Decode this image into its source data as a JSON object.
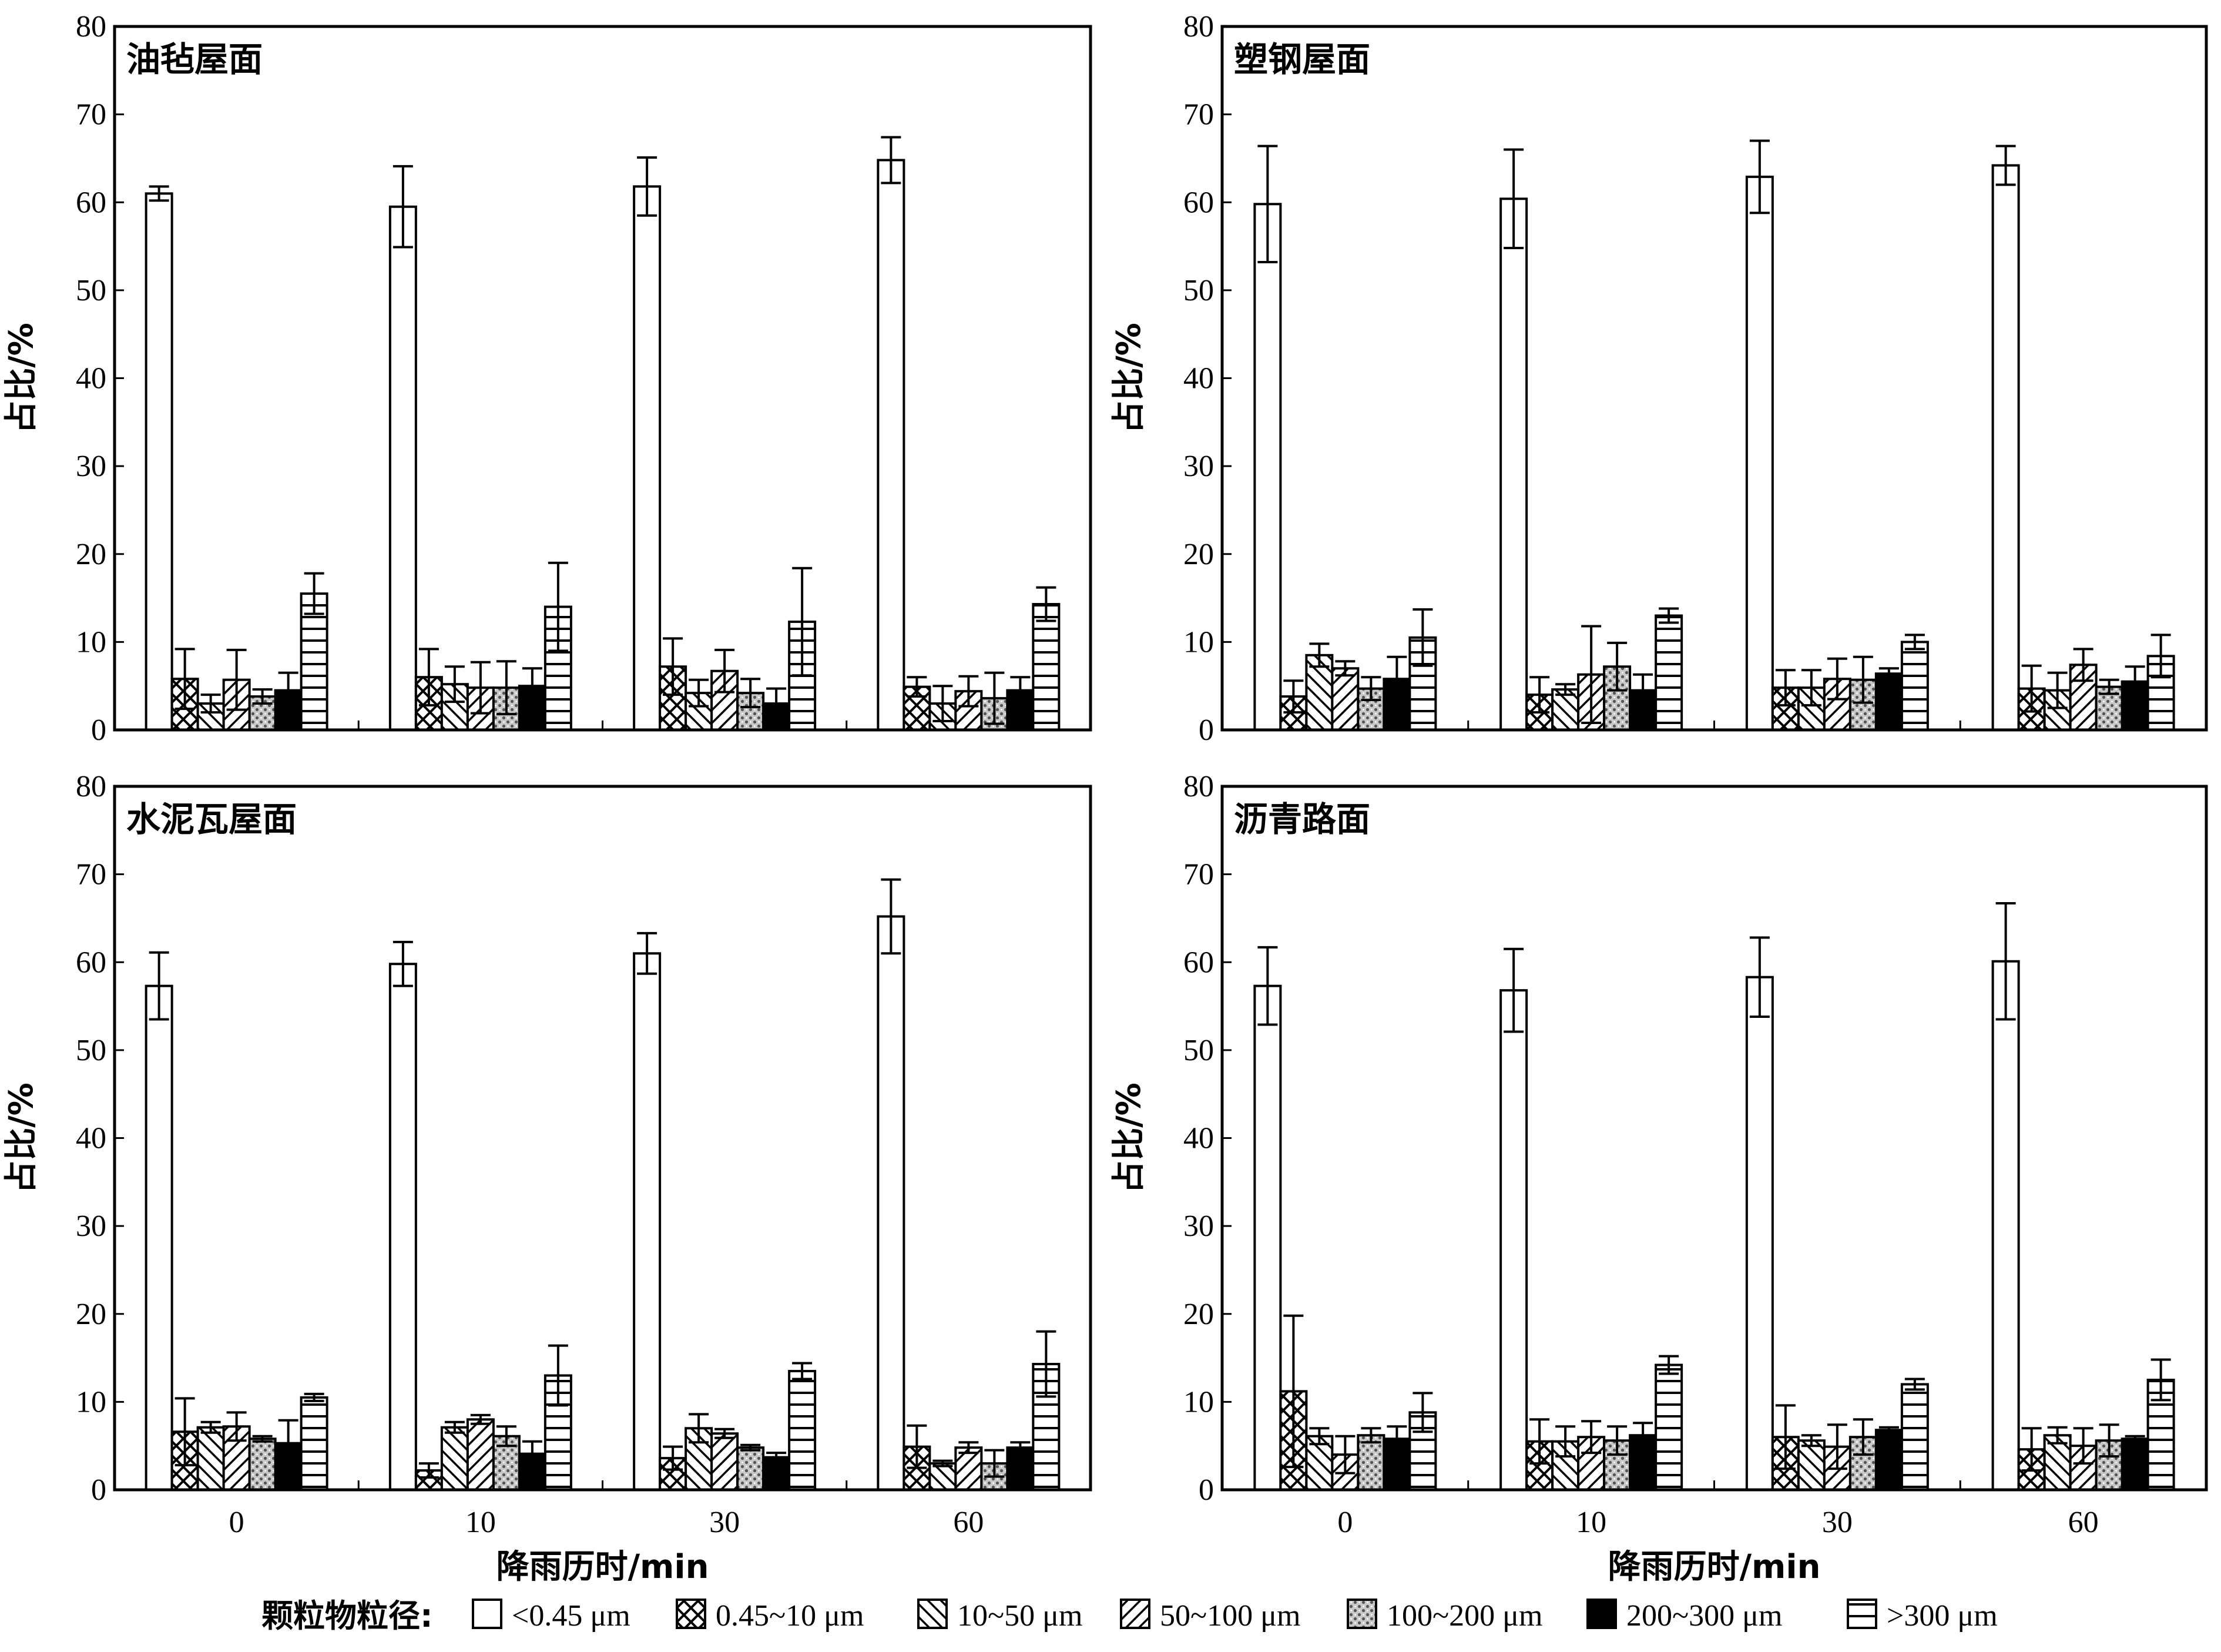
{
  "legend": {
    "title": "颗粒物粒径:",
    "items": [
      {
        "label": "<0.45 μm",
        "pattern": "blank"
      },
      {
        "label": "0.45~10 μm",
        "pattern": "crosshatch"
      },
      {
        "label": "10~50 μm",
        "pattern": "backslash"
      },
      {
        "label": "50~100 μm",
        "pattern": "slash"
      },
      {
        "label": "100~200 μm",
        "pattern": "dots"
      },
      {
        "label": "200~300 μm",
        "pattern": "solid"
      },
      {
        "label": ">300 μm",
        "pattern": "hlines"
      }
    ]
  },
  "colors": {
    "ink": "#000000",
    "background": "#ffffff"
  },
  "chart_data": [
    {
      "type": "bar",
      "title": "油毡屋面",
      "ylabel": "占比/%",
      "xlabel": "",
      "ylim": [
        0,
        80
      ],
      "yticks": [
        0,
        10,
        20,
        30,
        40,
        50,
        60,
        70,
        80
      ],
      "categories": [
        "0",
        "10",
        "30",
        "60"
      ],
      "show_x_tick_labels": false,
      "series": [
        {
          "name": "<0.45 μm",
          "values": [
            61,
            59.5,
            61.8,
            64.8
          ],
          "errors": [
            0.8,
            4.6,
            3.3,
            2.6
          ]
        },
        {
          "name": "0.45~10 μm",
          "values": [
            5.8,
            6,
            7.2,
            4.9
          ],
          "errors": [
            3.4,
            3.2,
            3.2,
            1.1
          ]
        },
        {
          "name": "10~50 μm",
          "values": [
            3,
            5.2,
            4.2,
            3
          ],
          "errors": [
            1,
            2,
            1.5,
            2
          ]
        },
        {
          "name": "50~100 μm",
          "values": [
            5.7,
            4.8,
            6.7,
            4.4
          ],
          "errors": [
            3.4,
            2.9,
            2.4,
            1.7
          ]
        },
        {
          "name": "100~200 μm",
          "values": [
            3.8,
            4.8,
            4.2,
            3.6
          ],
          "errors": [
            0.8,
            3,
            1.6,
            2.9
          ]
        },
        {
          "name": "200~300 μm",
          "values": [
            4.5,
            5,
            3,
            4.5
          ],
          "errors": [
            2,
            2,
            1.7,
            1.5
          ]
        },
        {
          "name": ">300 μm",
          "values": [
            15.5,
            14,
            12.3,
            14.3
          ],
          "errors": [
            2.3,
            5,
            6.1,
            1.9
          ]
        }
      ]
    },
    {
      "type": "bar",
      "title": "塑钢屋面",
      "ylabel": "占比/%",
      "xlabel": "",
      "ylim": [
        0,
        80
      ],
      "yticks": [
        0,
        10,
        20,
        30,
        40,
        50,
        60,
        70,
        80
      ],
      "categories": [
        "0",
        "10",
        "30",
        "60"
      ],
      "show_x_tick_labels": false,
      "series": [
        {
          "name": "<0.45 μm",
          "values": [
            59.8,
            60.4,
            62.9,
            64.2
          ],
          "errors": [
            6.6,
            5.6,
            4.1,
            2.2
          ]
        },
        {
          "name": "0.45~10 μm",
          "values": [
            3.8,
            4,
            4.8,
            4.7
          ],
          "errors": [
            1.8,
            2,
            2,
            2.6
          ]
        },
        {
          "name": "10~50 μm",
          "values": [
            8.5,
            4.6,
            4.8,
            4.5
          ],
          "errors": [
            1.3,
            0.6,
            2,
            2
          ]
        },
        {
          "name": "50~100 μm",
          "values": [
            7,
            6.3,
            5.8,
            7.4
          ],
          "errors": [
            0.8,
            5.5,
            2.3,
            1.8
          ]
        },
        {
          "name": "100~200 μm",
          "values": [
            4.7,
            7.2,
            5.7,
            4.9
          ],
          "errors": [
            1.3,
            2.7,
            2.6,
            0.8
          ]
        },
        {
          "name": "200~300 μm",
          "values": [
            5.8,
            4.5,
            6.4,
            5.5
          ],
          "errors": [
            2.5,
            1.8,
            0.6,
            1.7
          ]
        },
        {
          "name": ">300 μm",
          "values": [
            10.5,
            13,
            10,
            8.4
          ],
          "errors": [
            3.2,
            0.8,
            0.8,
            2.4
          ]
        }
      ]
    },
    {
      "type": "bar",
      "title": "水泥瓦屋面",
      "ylabel": "占比/%",
      "xlabel": "降雨历时/min",
      "ylim": [
        0,
        80
      ],
      "yticks": [
        0,
        10,
        20,
        30,
        40,
        50,
        60,
        70,
        80
      ],
      "categories": [
        "0",
        "10",
        "30",
        "60"
      ],
      "show_x_tick_labels": true,
      "series": [
        {
          "name": "<0.45 μm",
          "values": [
            57.3,
            59.8,
            61,
            65.2
          ],
          "errors": [
            3.8,
            2.5,
            2.3,
            4.2
          ]
        },
        {
          "name": "0.45~10 μm",
          "values": [
            6.6,
            2.2,
            3.6,
            4.9
          ],
          "errors": [
            3.8,
            0.8,
            1.3,
            2.4
          ]
        },
        {
          "name": "10~50 μm",
          "values": [
            7.1,
            7.1,
            7,
            3
          ],
          "errors": [
            0.6,
            0.6,
            1.6,
            0.3
          ]
        },
        {
          "name": "50~100 μm",
          "values": [
            7.2,
            8,
            6.4,
            4.8
          ],
          "errors": [
            1.6,
            0.5,
            0.5,
            0.6
          ]
        },
        {
          "name": "100~200 μm",
          "values": [
            5.8,
            6.1,
            4.8,
            3
          ],
          "errors": [
            0.3,
            1.1,
            0.3,
            1.5
          ]
        },
        {
          "name": "200~300 μm",
          "values": [
            5.3,
            4.1,
            3.7,
            4.8
          ],
          "errors": [
            2.6,
            1.4,
            0.5,
            0.6
          ]
        },
        {
          "name": ">300 μm",
          "values": [
            10.5,
            13,
            13.5,
            14.3
          ],
          "errors": [
            0.4,
            3.4,
            0.9,
            3.7
          ]
        }
      ]
    },
    {
      "type": "bar",
      "title": "沥青路面",
      "ylabel": "占比/%",
      "xlabel": "降雨历时/min",
      "ylim": [
        0,
        80
      ],
      "yticks": [
        0,
        10,
        20,
        30,
        40,
        50,
        60,
        70,
        80
      ],
      "categories": [
        "0",
        "10",
        "30",
        "60"
      ],
      "show_x_tick_labels": true,
      "series": [
        {
          "name": "<0.45 μm",
          "values": [
            57.3,
            56.8,
            58.3,
            60.1
          ],
          "errors": [
            4.4,
            4.7,
            4.5,
            6.6
          ]
        },
        {
          "name": "0.45~10 μm",
          "values": [
            11.2,
            5.5,
            6,
            4.6
          ],
          "errors": [
            8.6,
            2.5,
            3.6,
            2.4
          ]
        },
        {
          "name": "10~50 μm",
          "values": [
            6.1,
            5.5,
            5.6,
            6.2
          ],
          "errors": [
            0.9,
            1.7,
            0.6,
            0.9
          ]
        },
        {
          "name": "50~100 μm",
          "values": [
            4,
            6,
            4.9,
            5
          ],
          "errors": [
            2.1,
            1.8,
            2.5,
            2
          ]
        },
        {
          "name": "100~200 μm",
          "values": [
            6.2,
            5.6,
            6,
            5.6
          ],
          "errors": [
            0.8,
            1.6,
            2,
            1.8
          ]
        },
        {
          "name": "200~300 μm",
          "values": [
            5.8,
            6.2,
            6.8,
            5.8
          ],
          "errors": [
            1.4,
            1.4,
            0.3,
            0.3
          ]
        },
        {
          "name": ">300 μm",
          "values": [
            8.8,
            14.2,
            12,
            12.5
          ],
          "errors": [
            2.2,
            1,
            0.6,
            2.3
          ]
        }
      ]
    }
  ]
}
